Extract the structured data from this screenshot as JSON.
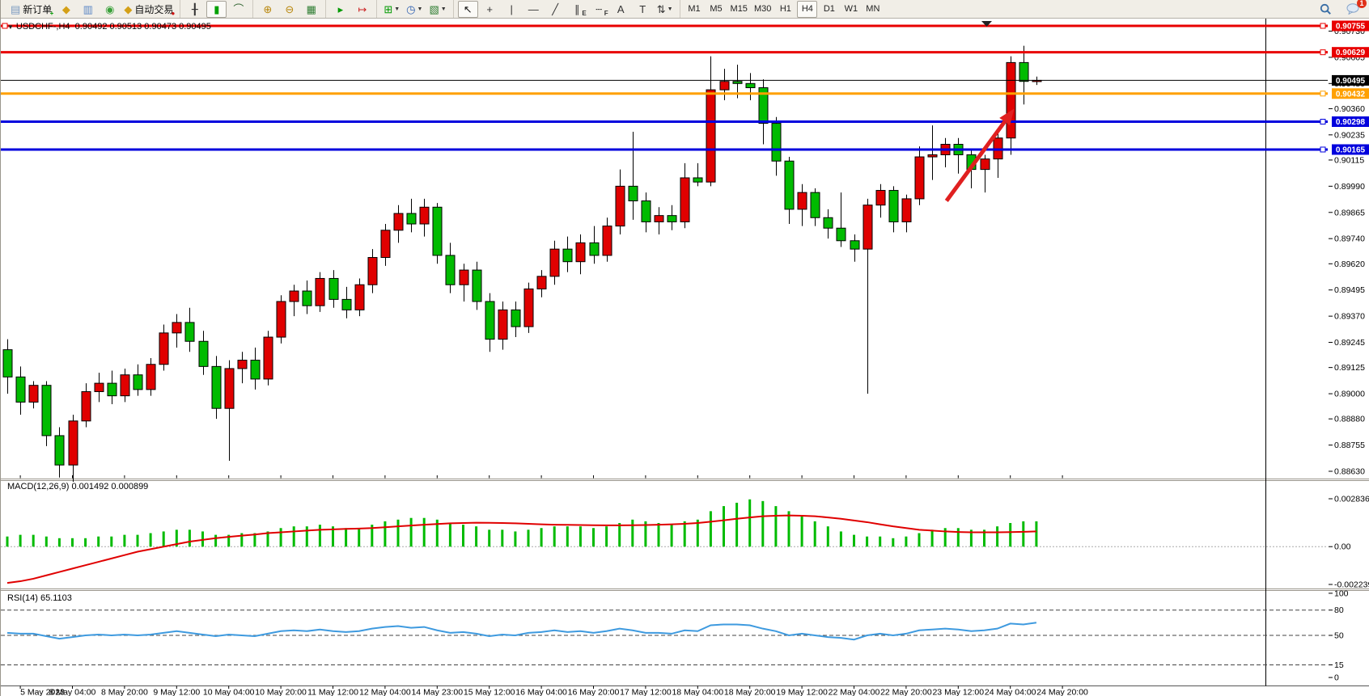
{
  "app": {
    "toolbar": {
      "groups": [
        {
          "items": [
            {
              "name": "new-order",
              "glyph": "▤",
              "color": "#7a9ac0",
              "glyph2": "+",
              "color2": "#009900",
              "label": "新订单"
            },
            {
              "name": "market-watch",
              "glyph": "◆",
              "color": "#d4a017"
            },
            {
              "name": "data-window",
              "glyph": "▥",
              "color": "#5b87c5"
            },
            {
              "name": "signals",
              "glyph": "◉",
              "color": "#3aa13a"
            },
            {
              "name": "auto-trading",
              "glyph": "◆",
              "color": "#d4a017",
              "glyph2": "●",
              "color2": "#cc1111",
              "label": "自动交易"
            }
          ]
        },
        {
          "items": [
            {
              "name": "bar-chart",
              "glyph": "╂",
              "color": "#333333"
            },
            {
              "name": "candlestick-chart",
              "glyph": "▮",
              "color": "#00a000",
              "active": true
            },
            {
              "name": "line-chart",
              "glyph": "⌒",
              "color": "#336633"
            }
          ]
        },
        {
          "items": [
            {
              "name": "zoom-in",
              "glyph": "⊕",
              "color": "#b8860b"
            },
            {
              "name": "zoom-out",
              "glyph": "⊖",
              "color": "#b8860b"
            },
            {
              "name": "tile-windows",
              "glyph": "▦",
              "color": "#2e7d32"
            }
          ]
        },
        {
          "items": [
            {
              "name": "auto-scroll",
              "glyph": "▸",
              "color": "#009900"
            },
            {
              "name": "chart-shift",
              "glyph": "↦",
              "color": "#cc2020"
            }
          ]
        },
        {
          "items": [
            {
              "name": "new-chart",
              "glyph": "⊞",
              "color": "#009900",
              "dropdown": true
            },
            {
              "name": "periods",
              "glyph": "◷",
              "color": "#2a5db0",
              "dropdown": true
            },
            {
              "name": "indicators-templates",
              "glyph": "▧",
              "color": "#2e7d32",
              "dropdown": true
            }
          ]
        },
        {
          "items": [
            {
              "name": "cursor",
              "glyph": "↖",
              "color": "#111111",
              "active": true
            },
            {
              "name": "crosshair",
              "glyph": "+",
              "color": "#333333"
            },
            {
              "name": "vertical-line",
              "glyph": "|",
              "color": "#333333"
            },
            {
              "name": "horizontal-line",
              "glyph": "—",
              "color": "#333333"
            },
            {
              "name": "trendline",
              "glyph": "╱",
              "color": "#333333"
            },
            {
              "name": "equidistant-channel",
              "glyph": "∥",
              "color": "#333333",
              "glyph2": "E",
              "color2": "#333333"
            },
            {
              "name": "fibonacci",
              "glyph": "┄",
              "color": "#333333",
              "glyph2": "F",
              "color2": "#333333"
            },
            {
              "name": "text",
              "glyph": "A",
              "color": "#333333"
            },
            {
              "name": "text-label",
              "glyph": "T",
              "color": "#333333"
            },
            {
              "name": "arrows",
              "glyph": "⇅",
              "color": "#333333",
              "dropdown": true
            }
          ]
        }
      ],
      "timeframes": [
        "M1",
        "M5",
        "M15",
        "M30",
        "H1",
        "H4",
        "D1",
        "W1",
        "MN"
      ],
      "active_timeframe": "H4",
      "chat_badge": "1"
    }
  },
  "chart": {
    "header": {
      "symbol": "USDCHF-,H4",
      "ohlc": "0.90492 0.90513 0.90473 0.90495"
    }
  },
  "chart_data": {
    "type": "candlestick",
    "symbol": "USDCHF-",
    "timeframe": "H4",
    "current_ohlc": {
      "open": 0.90492,
      "high": 0.90513,
      "low": 0.90473,
      "close": 0.90495
    },
    "ylim": [
      0.8863,
      0.90755
    ],
    "colors": {
      "bull": "#e00000",
      "bear": "#00bb00",
      "wick": "#000000",
      "red_line": "#e80000",
      "blue_line": "#0000dd",
      "orange_line": "#ffa000",
      "bid_line": "#000000",
      "macd_hist": "#00bb00",
      "macd_signal": "#e00000",
      "rsi_line": "#3e9adf",
      "arrow": "#e02020"
    },
    "hlines": [
      {
        "label": "0.90755",
        "price": 0.90755,
        "color": "#e80000",
        "width": 3
      },
      {
        "label": "0.90629",
        "price": 0.90629,
        "color": "#e80000",
        "width": 3
      },
      {
        "label": "0.90495",
        "price": 0.90495,
        "color": "#000000",
        "width": 1,
        "is_bid": true
      },
      {
        "label": "0.90432",
        "price": 0.90432,
        "color": "#ffa000",
        "width": 3
      },
      {
        "label": "0.90298",
        "price": 0.90298,
        "color": "#0000dd",
        "width": 3
      },
      {
        "label": "0.90165",
        "price": 0.90165,
        "color": "#0000dd",
        "width": 3
      }
    ],
    "price_axis_ticks": [
      "0.90730",
      "0.90605",
      "0.90480",
      "0.90360",
      "0.90235",
      "0.90115",
      "0.89990",
      "0.89865",
      "0.89740",
      "0.89620",
      "0.89495",
      "0.89370",
      "0.89245",
      "0.89125",
      "0.89000",
      "0.88880",
      "0.88755",
      "0.88630"
    ],
    "time_axis_labels": [
      "5 May 2023",
      "8 May 04:00",
      "8 May 20:00",
      "9 May 12:00",
      "10 May 04:00",
      "10 May 20:00",
      "11 May 12:00",
      "12 May 04:00",
      "14 May 23:00",
      "15 May 12:00",
      "16 May 04:00",
      "16 May 20:00",
      "17 May 12:00",
      "18 May 04:00",
      "18 May 20:00",
      "19 May 12:00",
      "22 May 04:00",
      "22 May 20:00",
      "23 May 12:00",
      "24 May 04:00",
      "24 May 20:00"
    ],
    "candles": [
      [
        0.8921,
        0.8926,
        0.89,
        0.8908
      ],
      [
        0.8908,
        0.8913,
        0.889,
        0.8896
      ],
      [
        0.8896,
        0.8906,
        0.8893,
        0.8904
      ],
      [
        0.8904,
        0.8906,
        0.8875,
        0.888
      ],
      [
        0.888,
        0.8884,
        0.886,
        0.8866
      ],
      [
        0.8866,
        0.889,
        0.8858,
        0.8887
      ],
      [
        0.8887,
        0.8905,
        0.8884,
        0.8901
      ],
      [
        0.8901,
        0.891,
        0.8896,
        0.8905
      ],
      [
        0.8905,
        0.8911,
        0.8895,
        0.8899
      ],
      [
        0.8899,
        0.8912,
        0.8896,
        0.8909
      ],
      [
        0.8909,
        0.8914,
        0.8899,
        0.8902
      ],
      [
        0.8902,
        0.8917,
        0.8899,
        0.8914
      ],
      [
        0.8914,
        0.8933,
        0.8911,
        0.8929
      ],
      [
        0.8929,
        0.8938,
        0.8922,
        0.8934
      ],
      [
        0.8934,
        0.8941,
        0.892,
        0.8925
      ],
      [
        0.8925,
        0.893,
        0.8909,
        0.8913
      ],
      [
        0.8913,
        0.8918,
        0.8888,
        0.8893
      ],
      [
        0.8893,
        0.8916,
        0.8868,
        0.8912
      ],
      [
        0.8912,
        0.892,
        0.8905,
        0.8916
      ],
      [
        0.8916,
        0.8922,
        0.8902,
        0.8907
      ],
      [
        0.8907,
        0.893,
        0.8904,
        0.8927
      ],
      [
        0.8927,
        0.8947,
        0.8924,
        0.8944
      ],
      [
        0.8944,
        0.8952,
        0.8937,
        0.8949
      ],
      [
        0.8949,
        0.8954,
        0.8938,
        0.8942
      ],
      [
        0.8942,
        0.8958,
        0.8939,
        0.8955
      ],
      [
        0.8955,
        0.8959,
        0.8941,
        0.8945
      ],
      [
        0.8945,
        0.8951,
        0.8936,
        0.894
      ],
      [
        0.894,
        0.8955,
        0.8937,
        0.8952
      ],
      [
        0.8952,
        0.8969,
        0.8948,
        0.8965
      ],
      [
        0.8965,
        0.8981,
        0.8961,
        0.8978
      ],
      [
        0.8978,
        0.899,
        0.8972,
        0.8986
      ],
      [
        0.8986,
        0.8993,
        0.8977,
        0.8981
      ],
      [
        0.8981,
        0.8993,
        0.8975,
        0.8989
      ],
      [
        0.8989,
        0.8991,
        0.8962,
        0.8966
      ],
      [
        0.8966,
        0.8972,
        0.8948,
        0.8952
      ],
      [
        0.8952,
        0.8962,
        0.8944,
        0.8959
      ],
      [
        0.8959,
        0.8963,
        0.894,
        0.8944
      ],
      [
        0.8944,
        0.8948,
        0.892,
        0.8926
      ],
      [
        0.8926,
        0.8944,
        0.8921,
        0.894
      ],
      [
        0.894,
        0.8944,
        0.8927,
        0.8932
      ],
      [
        0.8932,
        0.8953,
        0.8929,
        0.895
      ],
      [
        0.895,
        0.8959,
        0.8946,
        0.8956
      ],
      [
        0.8956,
        0.8973,
        0.8952,
        0.8969
      ],
      [
        0.8969,
        0.8975,
        0.8958,
        0.8963
      ],
      [
        0.8963,
        0.8976,
        0.8957,
        0.8972
      ],
      [
        0.8972,
        0.898,
        0.8962,
        0.8966
      ],
      [
        0.8966,
        0.8984,
        0.8963,
        0.898
      ],
      [
        0.898,
        0.9007,
        0.8976,
        0.8999
      ],
      [
        0.8999,
        0.9025,
        0.8983,
        0.8992
      ],
      [
        0.8992,
        0.8996,
        0.8977,
        0.8982
      ],
      [
        0.8982,
        0.8989,
        0.8976,
        0.8985
      ],
      [
        0.8985,
        0.899,
        0.8978,
        0.8982
      ],
      [
        0.8982,
        0.901,
        0.8979,
        0.9003
      ],
      [
        0.9003,
        0.901,
        0.8999,
        0.9001
      ],
      [
        0.9001,
        0.9061,
        0.8999,
        0.9045
      ],
      [
        0.9045,
        0.9055,
        0.904,
        0.9049
      ],
      [
        0.9049,
        0.9057,
        0.9041,
        0.9048
      ],
      [
        0.9048,
        0.9053,
        0.904,
        0.9046
      ],
      [
        0.9046,
        0.905,
        0.9019,
        0.9029
      ],
      [
        0.9029,
        0.9032,
        0.9004,
        0.9011
      ],
      [
        0.9011,
        0.9013,
        0.8981,
        0.8988
      ],
      [
        0.8988,
        0.9,
        0.898,
        0.8996
      ],
      [
        0.8996,
        0.8998,
        0.898,
        0.8984
      ],
      [
        0.8984,
        0.8988,
        0.8974,
        0.8979
      ],
      [
        0.8979,
        0.8996,
        0.897,
        0.8973
      ],
      [
        0.8973,
        0.8976,
        0.8963,
        0.8969
      ],
      [
        0.8969,
        0.8993,
        0.89,
        0.899
      ],
      [
        0.899,
        0.9,
        0.8984,
        0.8997
      ],
      [
        0.8997,
        0.8999,
        0.8977,
        0.8982
      ],
      [
        0.8982,
        0.8995,
        0.8977,
        0.8993
      ],
      [
        0.8993,
        0.9018,
        0.899,
        0.9013
      ],
      [
        0.9013,
        0.9028,
        0.9002,
        0.9014
      ],
      [
        0.9014,
        0.9022,
        0.9008,
        0.9019
      ],
      [
        0.9019,
        0.9022,
        0.9005,
        0.9014
      ],
      [
        0.9014,
        0.9016,
        0.8998,
        0.9007
      ],
      [
        0.9007,
        0.9014,
        0.8996,
        0.9012
      ],
      [
        0.9012,
        0.9026,
        0.9003,
        0.9022
      ],
      [
        0.9022,
        0.9061,
        0.9014,
        0.9058
      ],
      [
        0.9058,
        0.9066,
        0.9038,
        0.9049
      ],
      [
        0.90492,
        0.90513,
        0.90473,
        0.90495
      ]
    ],
    "arrow_annotation": {
      "from_bar": 72.1,
      "from_price": 0.8992,
      "to_bar": 77.3,
      "to_price": 0.9036,
      "color": "#e02020"
    },
    "macd": {
      "label": "MACD(12,26,9)",
      "values_text": "0.001492 0.000899",
      "axis_labels": [
        "0.002836",
        "0.00",
        "-0.002239"
      ],
      "range": {
        "max": 0.002836,
        "min": -0.002239
      },
      "histogram": [
        0.0006,
        0.0007,
        0.0007,
        0.0006,
        0.0005,
        0.0005,
        0.0005,
        0.0006,
        0.0006,
        0.0007,
        0.0007,
        0.0008,
        0.0009,
        0.001,
        0.001,
        0.0009,
        0.0007,
        0.0007,
        0.0008,
        0.0008,
        0.0009,
        0.0011,
        0.0012,
        0.0012,
        0.0013,
        0.0012,
        0.0011,
        0.0011,
        0.0013,
        0.0015,
        0.0016,
        0.0017,
        0.0017,
        0.0016,
        0.0014,
        0.0013,
        0.0012,
        0.001,
        0.001,
        0.0009,
        0.001,
        0.0011,
        0.0012,
        0.0012,
        0.0012,
        0.0011,
        0.0012,
        0.0014,
        0.0016,
        0.0015,
        0.0014,
        0.0013,
        0.0015,
        0.0016,
        0.0021,
        0.0024,
        0.0026,
        0.0028,
        0.0027,
        0.0024,
        0.0021,
        0.0018,
        0.0015,
        0.0012,
        0.0009,
        0.0007,
        0.0006,
        0.0006,
        0.0005,
        0.0006,
        0.0008,
        0.001,
        0.0011,
        0.0011,
        0.001,
        0.001,
        0.0012,
        0.0014,
        0.0015,
        0.0015
      ],
      "signal": [
        -0.00215,
        -0.00205,
        -0.0019,
        -0.0017,
        -0.0015,
        -0.0013,
        -0.0011,
        -0.0009,
        -0.0007,
        -0.0005,
        -0.0003,
        -0.00015,
        0.0,
        0.00015,
        0.0003,
        0.0004,
        0.0005,
        0.00058,
        0.00065,
        0.00072,
        0.0008,
        0.00085,
        0.0009,
        0.00095,
        0.001,
        0.00102,
        0.00105,
        0.00107,
        0.0011,
        0.00115,
        0.0012,
        0.00125,
        0.0013,
        0.00134,
        0.00138,
        0.0014,
        0.00142,
        0.00141,
        0.0014,
        0.00138,
        0.00135,
        0.00132,
        0.0013,
        0.00129,
        0.00128,
        0.00127,
        0.00126,
        0.00126,
        0.00127,
        0.00128,
        0.0013,
        0.00132,
        0.00135,
        0.0014,
        0.00148,
        0.00156,
        0.00165,
        0.00173,
        0.0018,
        0.00183,
        0.00185,
        0.00183,
        0.0018,
        0.00173,
        0.00165,
        0.00155,
        0.00145,
        0.00132,
        0.0012,
        0.0011,
        0.001,
        0.00095,
        0.0009,
        0.00087,
        0.00085,
        0.00085,
        0.00085,
        0.00086,
        0.00088,
        0.0009
      ]
    },
    "rsi": {
      "label": "RSI(14)",
      "value_text": "65.1103",
      "axis_labels": [
        "100",
        "80",
        "50",
        "15",
        "0"
      ],
      "levels": [
        80,
        50,
        15
      ],
      "values": [
        53,
        52,
        52,
        49,
        46,
        48,
        50,
        51,
        50,
        51,
        50,
        51,
        53,
        55,
        53,
        51,
        49,
        51,
        50,
        49,
        52,
        55,
        56,
        55,
        57,
        55,
        54,
        55,
        58,
        60,
        61,
        59,
        60,
        56,
        53,
        54,
        52,
        49,
        51,
        50,
        53,
        54,
        56,
        54,
        55,
        53,
        55,
        58,
        56,
        53,
        53,
        52,
        56,
        55,
        62,
        63,
        63,
        62,
        58,
        55,
        50,
        52,
        50,
        48,
        47,
        45,
        50,
        52,
        50,
        52,
        56,
        57,
        58,
        57,
        55,
        56,
        58,
        64,
        63,
        65.11
      ]
    }
  }
}
